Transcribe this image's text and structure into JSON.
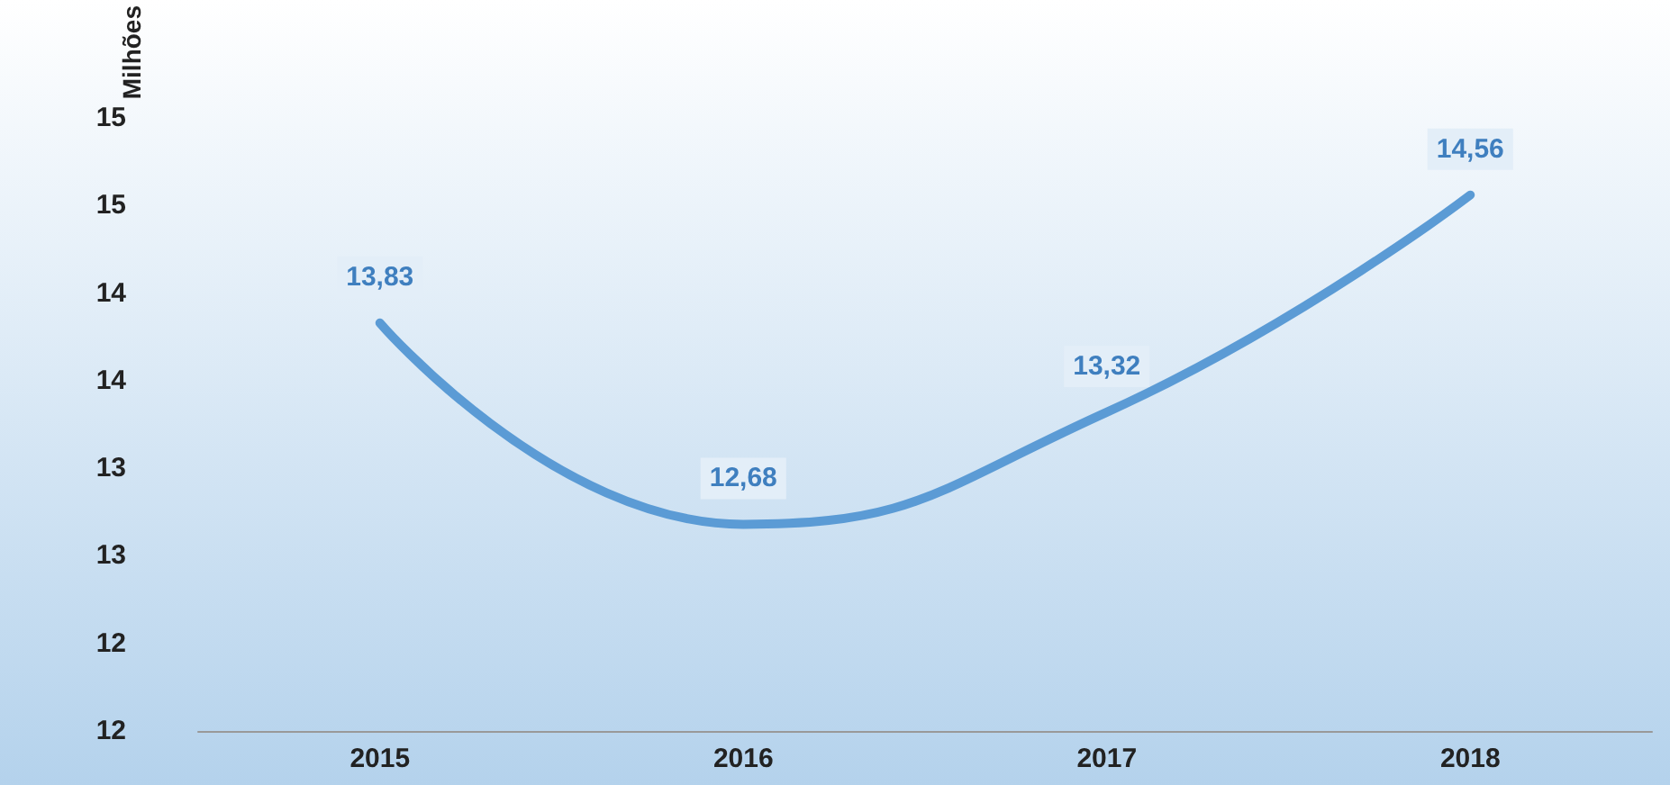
{
  "chart_data": {
    "type": "line",
    "ylabel": "Milhões",
    "categories": [
      "2015",
      "2016",
      "2017",
      "2018"
    ],
    "series": [
      {
        "color": "#5b9bd5",
        "values": [
          13.83,
          12.68,
          13.32,
          14.56
        ],
        "value_labels": [
          "13,83",
          "12,68",
          "13,32",
          "14,56"
        ]
      }
    ],
    "ylim": [
      11.5,
      15
    ],
    "yticks": [
      {
        "value": 11.5,
        "label": "12"
      },
      {
        "value": 12,
        "label": "12"
      },
      {
        "value": 12.5,
        "label": "13"
      },
      {
        "value": 13,
        "label": "13"
      },
      {
        "value": 13.5,
        "label": "14"
      },
      {
        "value": 14,
        "label": "14"
      },
      {
        "value": 14.5,
        "label": "15"
      },
      {
        "value": 15,
        "label": "15"
      }
    ],
    "grid": false,
    "marker": "none",
    "line_style": "solid"
  }
}
